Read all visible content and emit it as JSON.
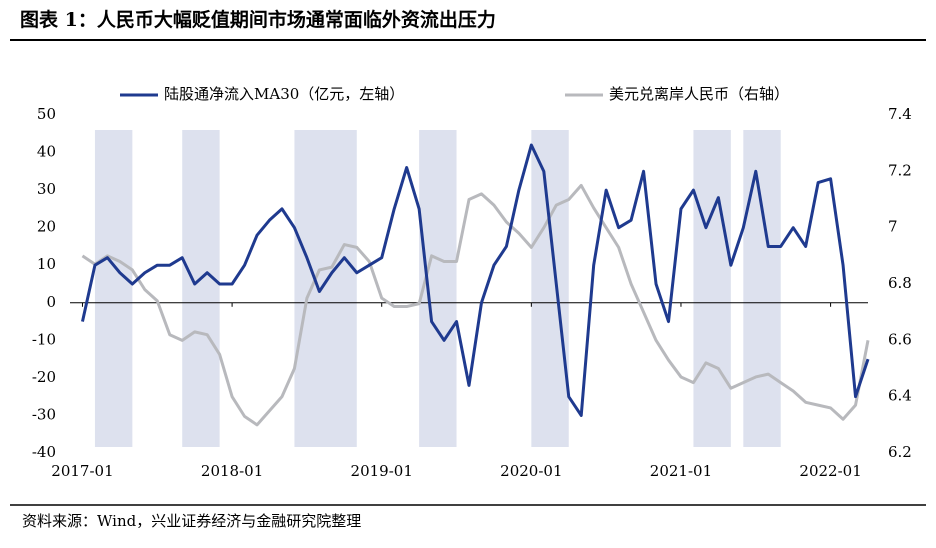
{
  "chart_data": {
    "type": "line",
    "title": "图表 1：人民币大幅贬值期间市场通常面临外资流出压力",
    "source": "资料来源：Wind，兴业证券经济与金融研究院整理",
    "x": [
      "2017-01",
      "2017-02",
      "2017-03",
      "2017-04",
      "2017-05",
      "2017-06",
      "2017-07",
      "2017-08",
      "2017-09",
      "2017-10",
      "2017-11",
      "2017-12",
      "2018-01",
      "2018-02",
      "2018-03",
      "2018-04",
      "2018-05",
      "2018-06",
      "2018-07",
      "2018-08",
      "2018-09",
      "2018-10",
      "2018-11",
      "2018-12",
      "2019-01",
      "2019-02",
      "2019-03",
      "2019-04",
      "2019-05",
      "2019-06",
      "2019-07",
      "2019-08",
      "2019-09",
      "2019-10",
      "2019-11",
      "2019-12",
      "2020-01",
      "2020-02",
      "2020-03",
      "2020-04",
      "2020-05",
      "2020-06",
      "2020-07",
      "2020-08",
      "2020-09",
      "2020-10",
      "2020-11",
      "2020-12",
      "2021-01",
      "2021-02",
      "2021-03",
      "2021-04",
      "2021-05",
      "2021-06",
      "2021-07",
      "2021-08",
      "2021-09",
      "2021-10",
      "2021-11",
      "2021-12",
      "2022-01",
      "2022-02",
      "2022-03",
      "2022-04"
    ],
    "series": [
      {
        "name": "陆股通净流入MA30（亿元，左轴）",
        "color": "#1f3a8f",
        "values": [
          -5,
          10,
          12,
          8,
          5,
          8,
          10,
          10,
          12,
          5,
          8,
          5,
          5,
          10,
          18,
          22,
          25,
          20,
          12,
          3,
          8,
          12,
          8,
          10,
          12,
          25,
          36,
          25,
          -5,
          -10,
          -5,
          -22,
          0,
          10,
          15,
          30,
          42,
          35,
          5,
          -25,
          -30,
          10,
          30,
          20,
          22,
          35,
          5,
          -5,
          25,
          30,
          20,
          28,
          10,
          20,
          35,
          15,
          15,
          20,
          15,
          32,
          33,
          10,
          -25,
          -15
        ]
      },
      {
        "name": "美元兑离岸人民币（右轴）",
        "color": "#b8b9bd",
        "axis": "y2",
        "values": [
          6.9,
          6.87,
          6.9,
          6.88,
          6.85,
          6.78,
          6.74,
          6.62,
          6.6,
          6.63,
          6.62,
          6.55,
          6.4,
          6.33,
          6.3,
          6.35,
          6.4,
          6.5,
          6.75,
          6.85,
          6.86,
          6.94,
          6.93,
          6.88,
          6.75,
          6.72,
          6.72,
          6.73,
          6.9,
          6.88,
          6.88,
          7.1,
          7.12,
          7.08,
          7.02,
          6.98,
          6.93,
          7.0,
          7.08,
          7.1,
          7.15,
          7.07,
          7.0,
          6.93,
          6.8,
          6.7,
          6.6,
          6.53,
          6.47,
          6.45,
          6.52,
          6.5,
          6.43,
          6.45,
          6.47,
          6.48,
          6.45,
          6.42,
          6.38,
          6.37,
          6.36,
          6.32,
          6.37,
          6.6
        ]
      }
    ],
    "xlim": [
      "2016-12",
      "2022-04"
    ],
    "xticks": [
      "2017-01",
      "2018-01",
      "2019-01",
      "2020-01",
      "2021-01",
      "2022-01"
    ],
    "ylim": [
      -40,
      50
    ],
    "yticks": [
      50,
      40,
      30,
      20,
      10,
      0,
      -10,
      -20,
      -30,
      -40
    ],
    "y2lim": [
      6.2,
      7.4
    ],
    "y2ticks": [
      7.4,
      7.2,
      7,
      6.8,
      6.6,
      6.4,
      6.2
    ],
    "shaded": [
      [
        "2017-02",
        "2017-04"
      ],
      [
        "2017-09",
        "2017-11"
      ],
      [
        "2018-06",
        "2018-10"
      ],
      [
        "2019-04",
        "2019-06"
      ],
      [
        "2020-01",
        "2020-03"
      ],
      [
        "2021-02",
        "2021-04"
      ],
      [
        "2021-06",
        "2021-08"
      ]
    ],
    "shade_color": "#dde1ee"
  }
}
